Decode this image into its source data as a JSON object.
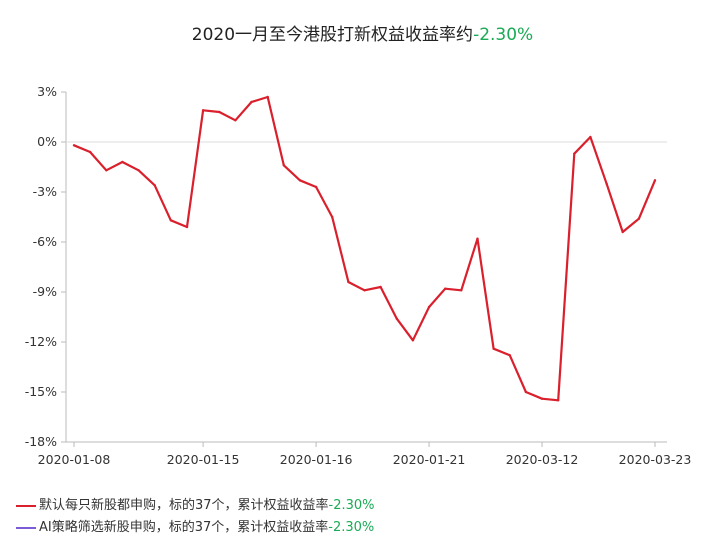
{
  "title": "2020一月至今港股打新权益收益率约",
  "title_value": "-2.30%",
  "legend": [
    {
      "label": "默认每只新股都申购，标的37个，累计权益收益率",
      "value": "-2.30%",
      "color": "#d9202c"
    },
    {
      "label": "AI策略筛选新股申购，标的37个，累计权益收益率",
      "value": "-2.30%",
      "color": "#7b5cd6"
    }
  ],
  "chart_data": {
    "type": "line",
    "title": "2020一月至今港股打新权益收益率约-2.30%",
    "xlabel": "",
    "ylabel": "",
    "y_tick_labels": [
      "3%",
      "0%",
      "-3%",
      "-6%",
      "-9%",
      "-12%",
      "-15%",
      "-18%"
    ],
    "y_ticks": [
      3,
      0,
      -3,
      -6,
      -9,
      -12,
      -15,
      -18
    ],
    "ylim": [
      -18,
      3
    ],
    "x_tick_labels": [
      "2020-01-08",
      "2020-01-15",
      "2020-01-16",
      "2020-01-21",
      "2020-03-12",
      "2020-03-23"
    ],
    "x_tick_index": [
      0,
      8,
      15,
      22,
      29,
      36
    ],
    "grid": {
      "horizontal": false,
      "vertical": false,
      "baseline_zero": true
    },
    "series": [
      {
        "name": "默认每只新股都申购，标的37个，累计权益收益率-2.30%",
        "color": "#d9202c",
        "values": [
          -0.2,
          -0.6,
          -1.7,
          -1.2,
          -1.7,
          -2.6,
          -4.7,
          -5.1,
          1.9,
          1.8,
          1.3,
          2.4,
          2.7,
          -1.4,
          -2.3,
          -2.7,
          -4.5,
          -8.4,
          -8.9,
          -8.7,
          -10.6,
          -11.9,
          -9.9,
          -8.8,
          -8.9,
          -5.8,
          -12.4,
          -12.8,
          -15.0,
          -15.4,
          -15.5,
          -0.7,
          0.3,
          -2.5,
          -5.4,
          -4.6,
          -2.3
        ]
      }
    ]
  }
}
